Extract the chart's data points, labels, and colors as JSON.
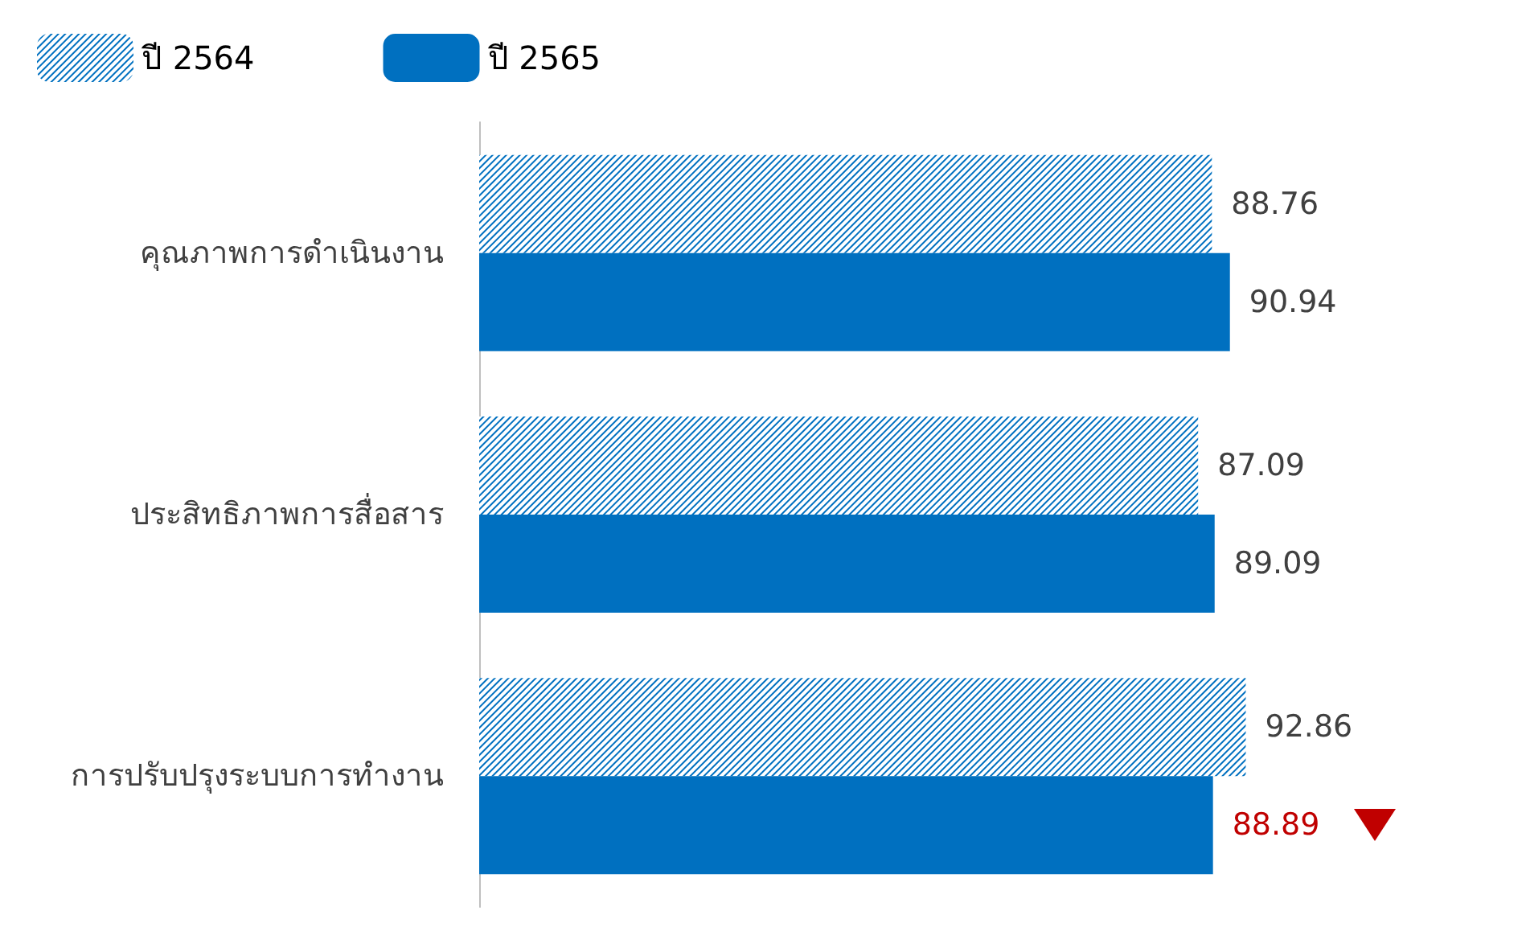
{
  "chart_data": {
    "type": "bar",
    "orientation": "horizontal",
    "categories": [
      "คุณภาพการดำเนินงาน",
      "ประสิทธิภาพการสื่อสาร",
      "การปรับปรุงระบบการทำงาน"
    ],
    "series": [
      {
        "name": "ปี 2564",
        "color": "#0070c0",
        "values": [
          88.76,
          87.09,
          92.86
        ]
      },
      {
        "name": "ปี 2565",
        "color": "#0070c0",
        "values": [
          90.94,
          89.09,
          88.89
        ]
      }
    ],
    "data_labels": true,
    "legend": "top left"
  }
}
